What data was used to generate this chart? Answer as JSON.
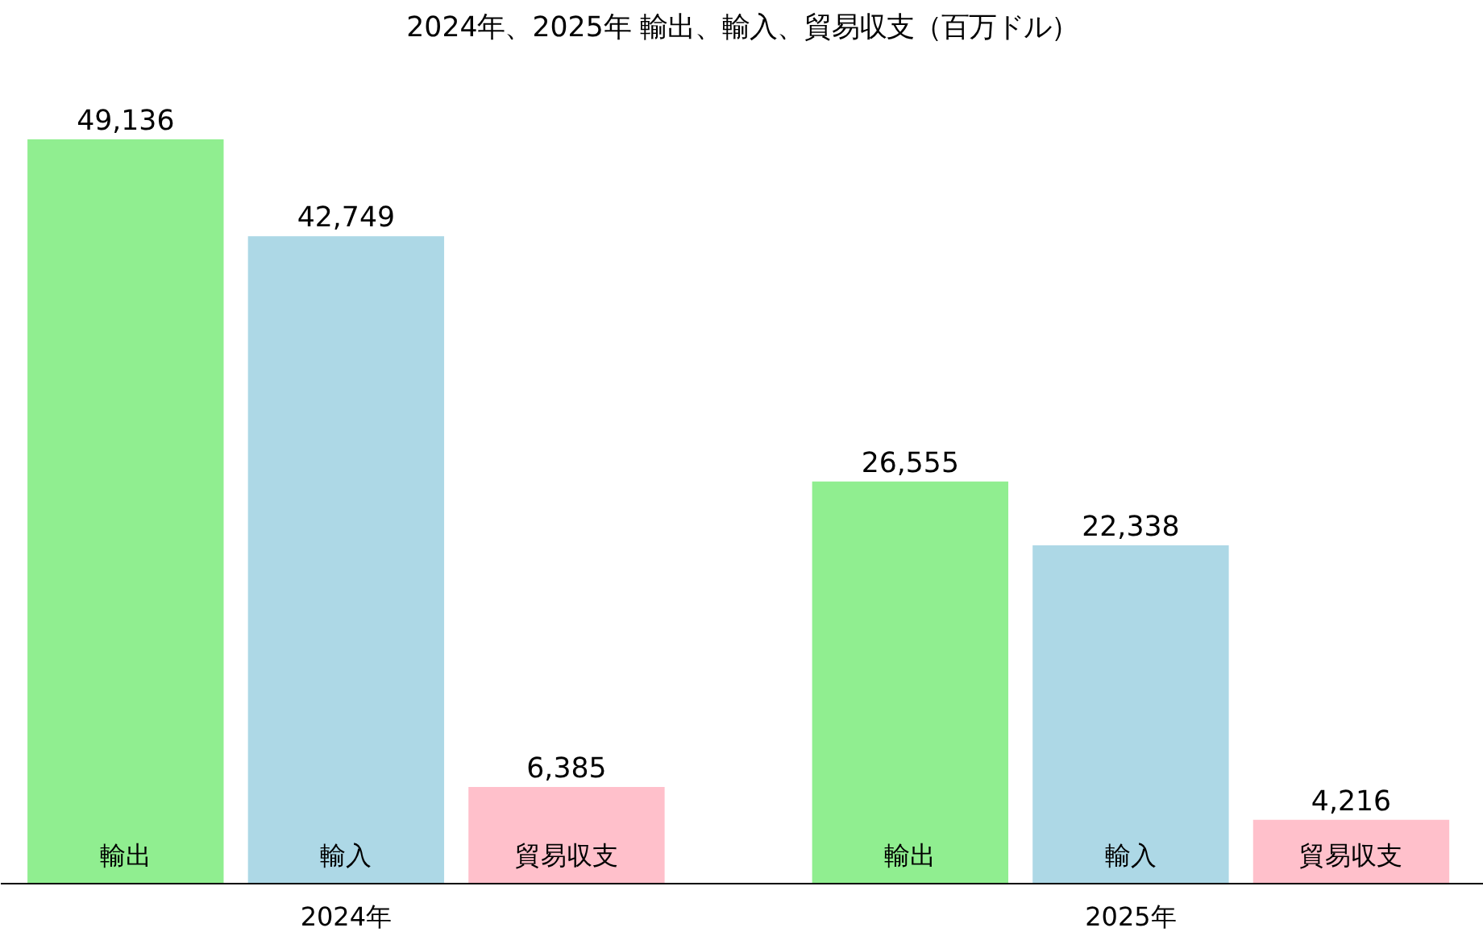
{
  "chart_data": {
    "type": "bar",
    "title": "2024年、2025年 輸出、輸入、貿易収支（百万ドル）",
    "categories": [
      "2024年",
      "2025年"
    ],
    "series": [
      {
        "name": "輸出",
        "color": "#90ee90",
        "values": [
          49136,
          26555
        ],
        "value_labels": [
          "49,136",
          "26,555"
        ]
      },
      {
        "name": "輸入",
        "color": "#add8e6",
        "values": [
          42749,
          22338
        ],
        "value_labels": [
          "42,749",
          "22,338"
        ]
      },
      {
        "name": "貿易収支",
        "color": "#ffc0cb",
        "values": [
          6385,
          4216
        ],
        "value_labels": [
          "6,385",
          "4,216"
        ]
      }
    ],
    "grid": false,
    "tick_labels": "x"
  }
}
